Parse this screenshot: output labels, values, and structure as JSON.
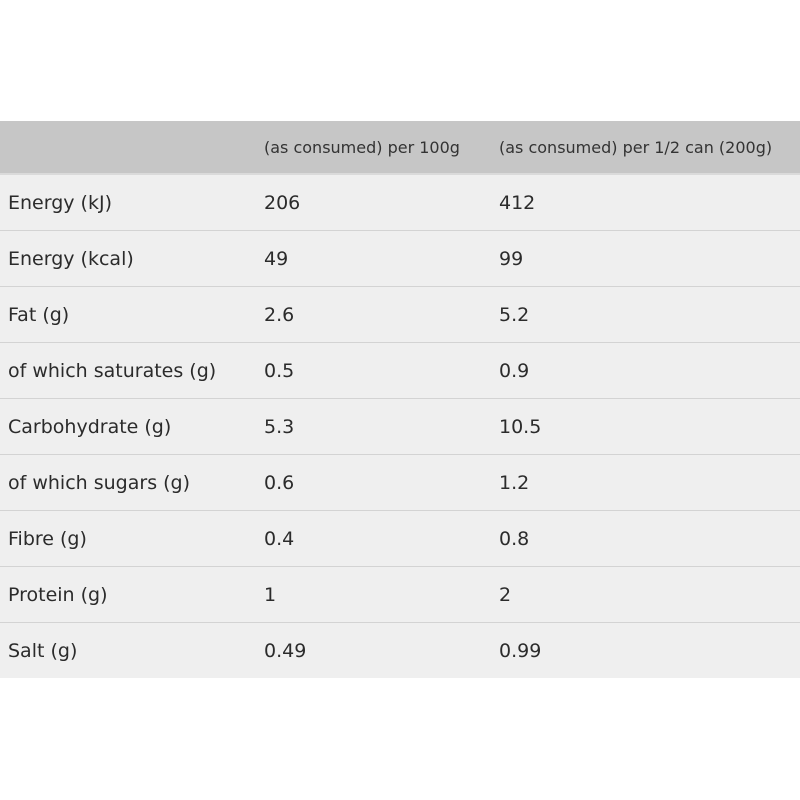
{
  "header": {
    "col1": "",
    "col2": "(as consumed) per 100g",
    "col3": "(as consumed) per 1/2 can (200g)"
  },
  "rows": [
    {
      "nutrient": "Energy (kJ)",
      "per_100g": "206",
      "per_half_can": "412"
    },
    {
      "nutrient": "Energy (kcal)",
      "per_100g": "49",
      "per_half_can": "99"
    },
    {
      "nutrient": "Fat (g)",
      "per_100g": "2.6",
      "per_half_can": "5.2"
    },
    {
      "nutrient": "of which saturates (g)",
      "per_100g": "0.5",
      "per_half_can": "0.9"
    },
    {
      "nutrient": "Carbohydrate (g)",
      "per_100g": "5.3",
      "per_half_can": "10.5"
    },
    {
      "nutrient": "of which sugars (g)",
      "per_100g": "0.6",
      "per_half_can": "1.2"
    },
    {
      "nutrient": "Fibre (g)",
      "per_100g": "0.4",
      "per_half_can": "0.8"
    },
    {
      "nutrient": "Protein (g)",
      "per_100g": "1",
      "per_half_can": "2"
    },
    {
      "nutrient": "Salt (g)",
      "per_100g": "0.49",
      "per_half_can": "0.99"
    }
  ]
}
